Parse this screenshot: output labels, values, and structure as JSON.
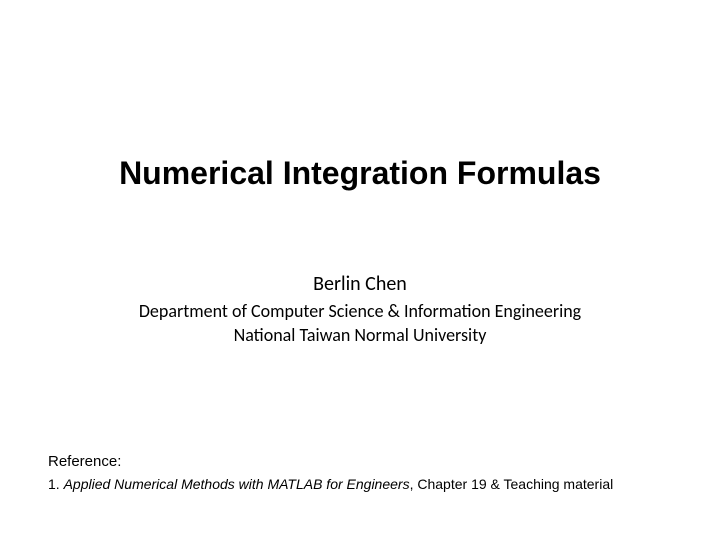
{
  "slide": {
    "title": "Numerical Integration Formulas",
    "author": {
      "name": "Berlin Chen",
      "department": "Department of Computer Science & Information Engineering",
      "university": "National Taiwan Normal University"
    },
    "reference": {
      "label": "Reference:",
      "item_prefix": "1. ",
      "item_italic": "Applied Numerical Methods with MATLAB for Engineers",
      "item_suffix": ", Chapter 19 & Teaching material"
    }
  },
  "style": {
    "background_color": "#ffffff",
    "text_color": "#000000",
    "title_fontsize": 32,
    "title_fontweight": "bold",
    "author_name_fontsize": 20,
    "author_detail_fontsize": 18,
    "reference_label_fontsize": 15,
    "reference_item_fontsize": 14
  }
}
